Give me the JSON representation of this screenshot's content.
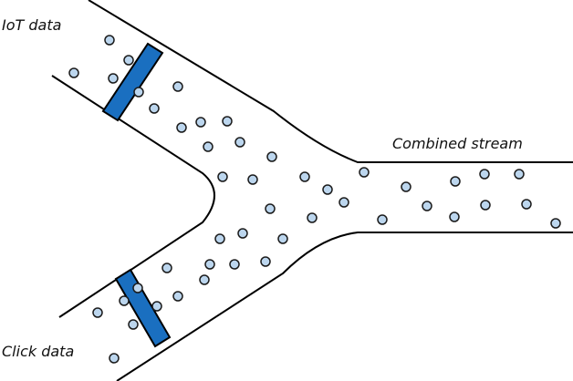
{
  "labels": {
    "iot": "IoT data",
    "combined": "Combined stream",
    "click": "Click data"
  },
  "colors": {
    "stroke": "#000000",
    "particle_fill": "#bcd6ee",
    "particle_stroke": "#1b1b1b",
    "gate_fill": "#1a6fc0",
    "gate_stroke": "#000000"
  }
}
